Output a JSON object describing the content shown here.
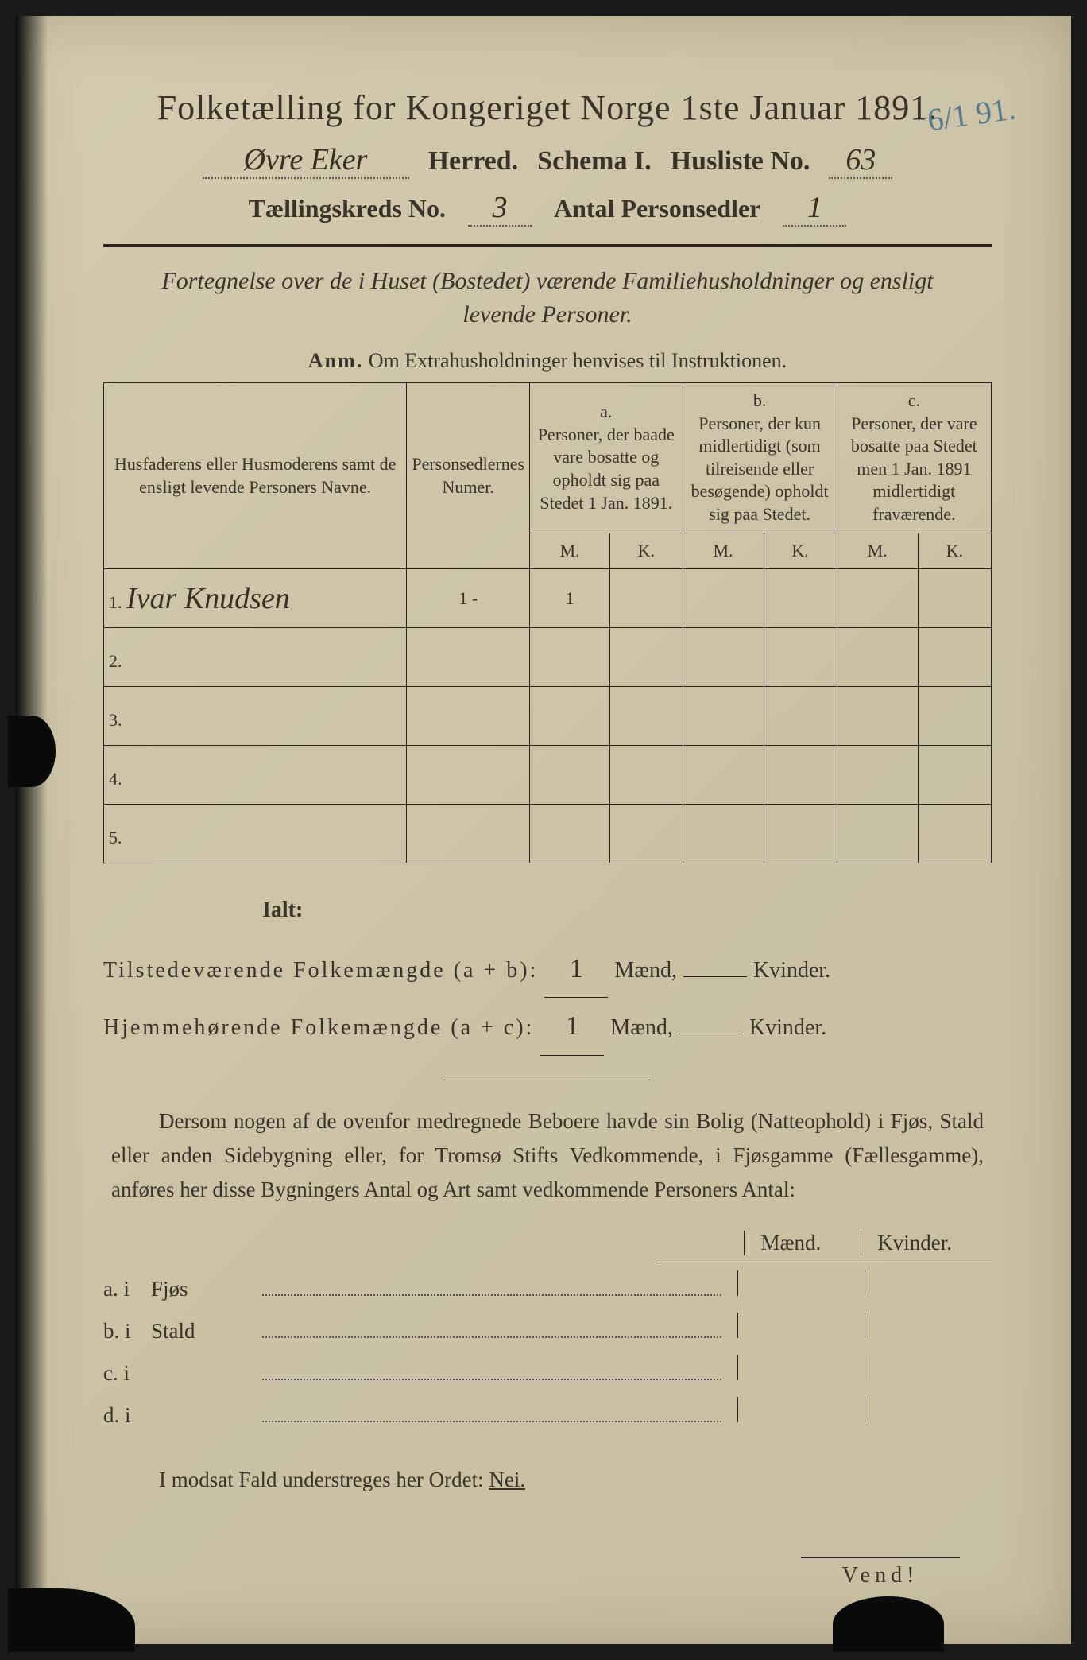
{
  "header": {
    "title": "Folketælling for Kongeriget Norge 1ste Januar 1891.",
    "herred_value": "Øvre Eker",
    "herred_label": "Herred.",
    "schema_label": "Schema I.",
    "husliste_label": "Husliste No.",
    "husliste_value": "63",
    "kreds_label": "Tællingskreds No.",
    "kreds_value": "3",
    "antal_label": "Antal Personsedler",
    "antal_value": "1",
    "corner_annotation": "6/1 91."
  },
  "subtitle": "Fortegnelse over de i Huset (Bostedet) værende Familiehusholdninger og ensligt levende Personer.",
  "anm_prefix": "Anm.",
  "anm_text": "Om Extrahusholdninger henvises til Instruktionen.",
  "table": {
    "col_name": "Husfaderens eller Husmoderens samt de ensligt levende Personers Navne.",
    "col_num": "Personsedlernes Numer.",
    "col_a_head": "a.",
    "col_a": "Personer, der baade vare bosatte og opholdt sig paa Stedet 1 Jan. 1891.",
    "col_b_head": "b.",
    "col_b": "Personer, der kun midlertidigt (som tilreisende eller besøgende) opholdt sig paa Stedet.",
    "col_c_head": "c.",
    "col_c": "Personer, der vare bosatte paa Stedet men 1 Jan. 1891 midlertidigt fraværende.",
    "mk_m": "M.",
    "mk_k": "K.",
    "rows": [
      {
        "n": "1.",
        "name": "Ivar Knudsen",
        "num": "1 -",
        "a_m": "1"
      },
      {
        "n": "2.",
        "name": "",
        "num": "",
        "a_m": ""
      },
      {
        "n": "3.",
        "name": "",
        "num": "",
        "a_m": ""
      },
      {
        "n": "4.",
        "name": "",
        "num": "",
        "a_m": ""
      },
      {
        "n": "5.",
        "name": "",
        "num": "",
        "a_m": ""
      }
    ]
  },
  "ialt": {
    "label": "Ialt:",
    "row1_label": "Tilstedeværende Folkemængde (a + b):",
    "row2_label": "Hjemmehørende Folkemængde (a + c):",
    "maend": "Mænd,",
    "kvinder": "Kvinder.",
    "row1_m": "1",
    "row1_k": "",
    "row2_m": "1",
    "row2_k": ""
  },
  "paragraph": "Dersom nogen af de ovenfor medregnede Beboere havde sin Bolig (Natteophold) i Fjøs, Stald eller anden Sidebygning eller, for Tromsø Stifts Vedkommende, i Fjøsgamme (Fællesgamme), anføres her disse Bygningers Antal og Art samt vedkommende Personers Antal:",
  "outbuild": {
    "head_m": "Mænd.",
    "head_k": "Kvinder.",
    "rows": [
      {
        "lab": "a. i",
        "type": "Fjøs"
      },
      {
        "lab": "b. i",
        "type": "Stald"
      },
      {
        "lab": "c. i",
        "type": ""
      },
      {
        "lab": "d. i",
        "type": ""
      }
    ]
  },
  "nei_line_pre": "I modsat Fald understreges her Ordet: ",
  "nei_word": "Nei.",
  "vend": "Vend!",
  "colors": {
    "paper": "#ccc3a8",
    "ink": "#2a2418",
    "handwriting": "#3a3020",
    "blue_pencil": "#5a7a8a"
  }
}
